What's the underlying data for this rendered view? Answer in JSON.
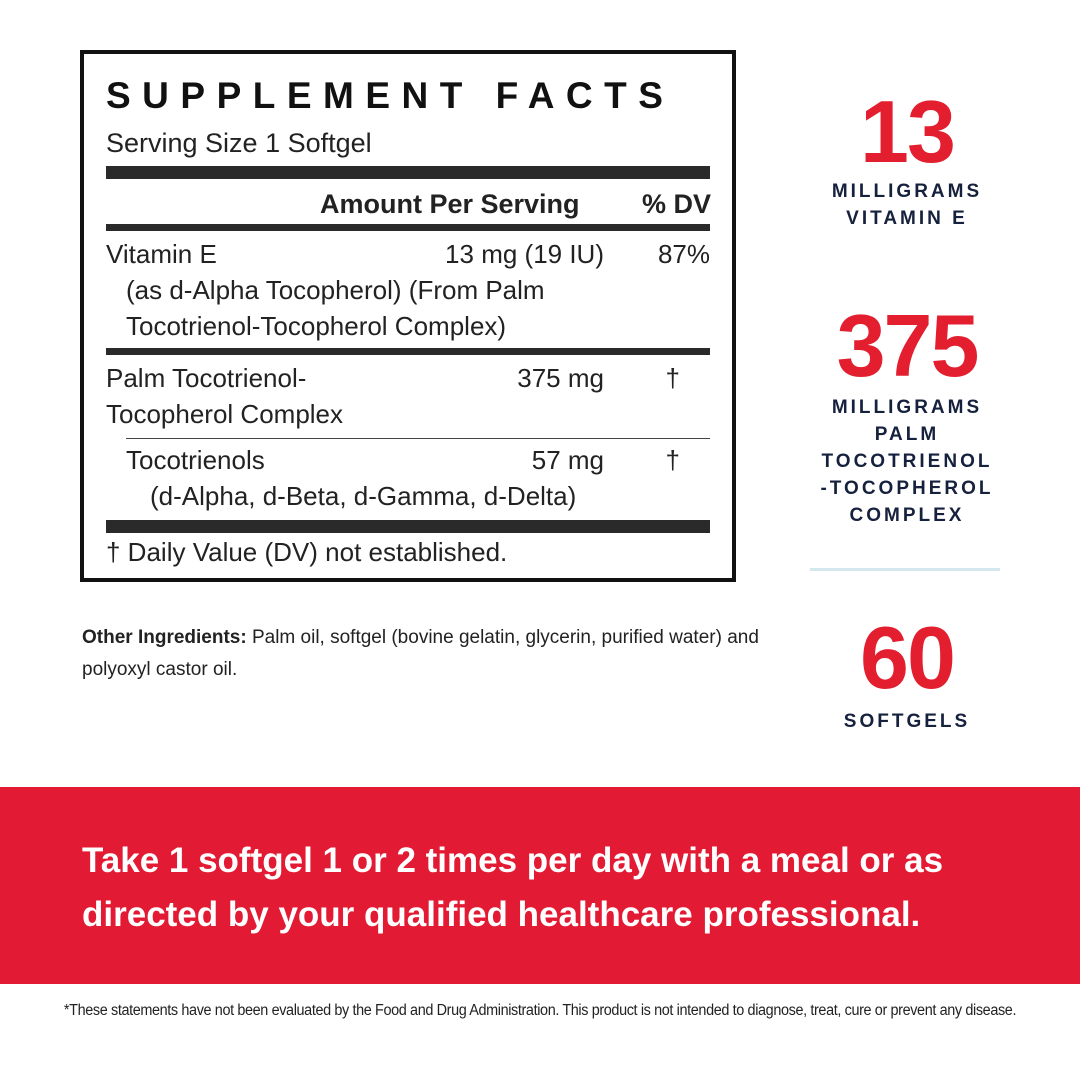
{
  "facts": {
    "title": "SUPPLEMENT FACTS",
    "serving_size": "Serving Size 1 Softgel",
    "header_amount": "Amount Per Serving",
    "header_dv": "% DV",
    "rows": [
      {
        "name": "Vitamin E",
        "amount": "13 mg (19 IU)",
        "dv": "87%",
        "sub1": "(as d-Alpha Tocopherol) (From Palm",
        "sub2": "Tocotrienol-Tocopherol Complex)"
      },
      {
        "name": "Palm Tocotrienol-",
        "name2": "Tocopherol Complex",
        "amount": "375 mg",
        "dv": "†"
      },
      {
        "name": "Tocotrienols",
        "amount": "57 mg",
        "dv": "†",
        "sub1": "(d-Alpha, d-Beta, d-Gamma, d-Delta)"
      }
    ],
    "footnote": "† Daily Value (DV) not established."
  },
  "other_ingredients": {
    "label": "Other Ingredients:",
    "text": " Palm oil, softgel (bovine gelatin, glycerin, purified water) and polyoxyl castor oil."
  },
  "stats": [
    {
      "value": "13",
      "lines": [
        "MILLIGRAMS",
        "VITAMIN E"
      ]
    },
    {
      "value": "375",
      "lines": [
        "MILLIGRAMS",
        "PALM",
        "TOCOTRIENOL",
        "-TOCOPHEROL",
        "COMPLEX"
      ]
    },
    {
      "value": "60",
      "lines": [
        "SOFTGELS"
      ]
    }
  ],
  "directions": {
    "line1": "Take 1 softgel 1 or 2 times per day with a meal or as",
    "line2": "directed by your qualified healthcare professional."
  },
  "disclaimer": "*These statements have not been evaluated by the Food and Drug Administration. This product is not intended to diagnose, treat, cure or prevent any disease.",
  "colors": {
    "accent_red": "#e31e2f",
    "banner_red": "#e31a33",
    "navy": "#16213d",
    "divider": "#d5e7ee"
  }
}
